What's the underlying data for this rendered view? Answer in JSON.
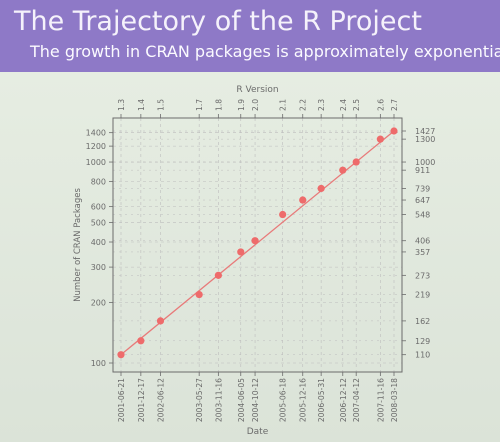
{
  "slide": {
    "title": "The Trajectory of the R Project",
    "subtitle": "The growth in CRAN packages is approximately exponential"
  },
  "colors": {
    "header": "#8e79c7",
    "line": "#e87a7a",
    "point": "#ee6b6b",
    "axis": "#6b6b6b",
    "grid": "#bdbdbd"
  },
  "chart_data": {
    "type": "scatter",
    "title": "",
    "xlabel": "Date",
    "ylabel": "Number of CRAN Packages",
    "top_axis_label": "R Version",
    "scale_y": "log",
    "ylim": [
      100,
      1427
    ],
    "yticks_left": [
      100,
      200,
      300,
      400,
      500,
      600,
      800,
      1000,
      1200,
      1400
    ],
    "grid": true,
    "points": [
      {
        "date": "2001-06-21",
        "version": "1.3",
        "value": 110
      },
      {
        "date": "2001-12-17",
        "version": "1.4",
        "value": 129
      },
      {
        "date": "2002-06-12",
        "version": "1.5",
        "value": 162
      },
      {
        "date": "2003-05-27",
        "version": "1.7",
        "value": 219
      },
      {
        "date": "2003-11-16",
        "version": "1.8",
        "value": 273
      },
      {
        "date": "2004-06-05",
        "version": "1.9",
        "value": 357
      },
      {
        "date": "2004-10-12",
        "version": "2.0",
        "value": 406
      },
      {
        "date": "2005-06-18",
        "version": "2.1",
        "value": 548
      },
      {
        "date": "2005-12-16",
        "version": "2.2",
        "value": 647
      },
      {
        "date": "2006-05-31",
        "version": "2.3",
        "value": 739
      },
      {
        "date": "2006-12-12",
        "version": "2.4",
        "value": 911
      },
      {
        "date": "2007-04-12",
        "version": "2.5",
        "value": 1000
      },
      {
        "date": "2007-11-16",
        "version": "2.6",
        "value": 1300
      },
      {
        "date": "2008-03-18",
        "version": "2.7",
        "value": 1427
      }
    ]
  }
}
